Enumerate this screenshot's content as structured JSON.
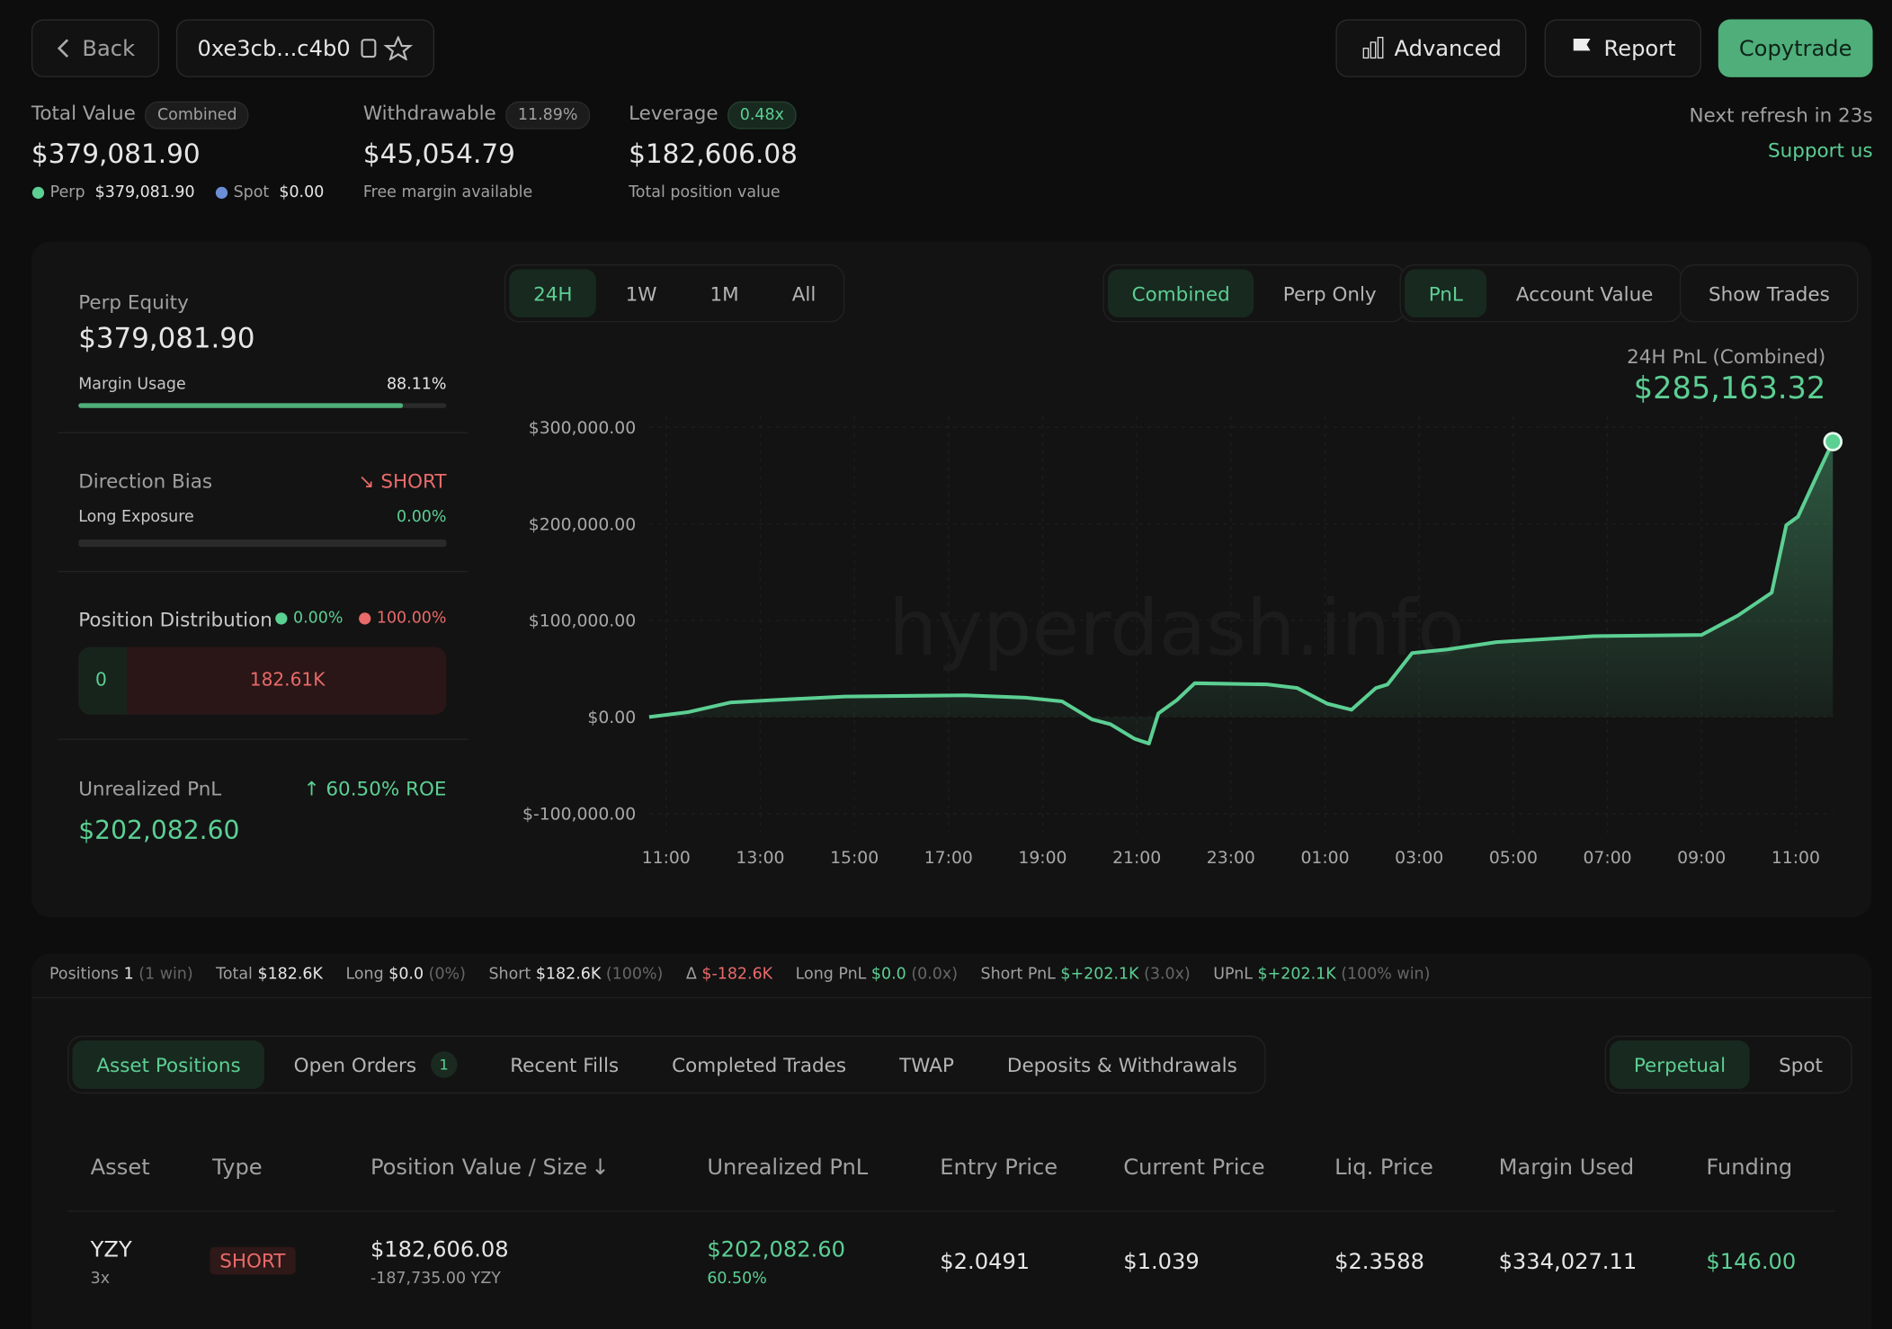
{
  "header": {
    "back": "Back",
    "address": "0xe3cb...c4b0",
    "buttons": [
      "Advanced",
      "Report",
      "Copytrade"
    ]
  },
  "stats": [
    {
      "label": "Total Value",
      "badge": "Combined",
      "value": "$379,081.90",
      "breakdown": [
        {
          "name": "Perp",
          "value": "$379,081.90"
        },
        {
          "name": "Spot",
          "value": "$0.00"
        }
      ]
    },
    {
      "label": "Withdrawable",
      "badge": "11.89%",
      "value": "$45,054.79",
      "sub": "Free margin available"
    },
    {
      "label": "Leverage",
      "badge": "0.48x",
      "value": "$182,606.08",
      "sub": "Total position value"
    }
  ],
  "refresh": "Next refresh in 23s",
  "support": "Support us",
  "panel": {
    "perp_equity": {
      "label": "Perp Equity",
      "value": "$379,081.90",
      "usage_label": "Margin Usage",
      "usage": "88.11%"
    },
    "direction": {
      "label": "Direction Bias",
      "bias": "SHORT",
      "exposure_label": "Long Exposure",
      "exposure": "0.00%"
    },
    "distribution": {
      "label": "Position Distribution",
      "long": "0.00%",
      "short": "100.00%",
      "long_value": "0",
      "short_value": "182.61K"
    },
    "upnl": {
      "label": "Unrealized PnL",
      "roe": "60.50% ROE",
      "value": "$202,082.60"
    }
  },
  "chart_controls": {
    "ranges": [
      "24H",
      "1W",
      "1M",
      "All"
    ],
    "modes": [
      "Combined",
      "Perp Only"
    ],
    "metrics": [
      "PnL",
      "Account Value"
    ],
    "show_trades": "Show Trades"
  },
  "chart_data": {
    "type": "line",
    "title": "24H PnL (Combined)",
    "annotation": "$285,163.32",
    "watermark": "hyperdash.info",
    "color": "#5ccf93",
    "x": [
      -0.36,
      0.46,
      1.36,
      2.26,
      3.8,
      6.36,
      7.64,
      8.41,
      9.05,
      9.44,
      9.95,
      10.26,
      10.46,
      10.85,
      11.23,
      12.77,
      13.41,
      14.05,
      14.56,
      15.08,
      15.33,
      15.85,
      16.6,
      17.64,
      19.69,
      22.0,
      22.77,
      23.49,
      23.8,
      24.05,
      24.44,
      24.79
    ],
    "values": [
      0,
      5000,
      15000,
      17500,
      21250,
      22500,
      20000,
      16250,
      -2500,
      -7500,
      -22500,
      -27500,
      3750,
      17500,
      35000,
      33750,
      30000,
      13750,
      7500,
      30000,
      33750,
      66250,
      70000,
      77500,
      83750,
      85000,
      105000,
      128750,
      198750,
      207500,
      248750,
      285163.32
    ],
    "xlim": [
      -0.36,
      24.79
    ],
    "xticks": [
      {
        "value": 0,
        "label": "11:00"
      },
      {
        "value": 2,
        "label": "13:00"
      },
      {
        "value": 4,
        "label": "15:00"
      },
      {
        "value": 6,
        "label": "17:00"
      },
      {
        "value": 8,
        "label": "19:00"
      },
      {
        "value": 10,
        "label": "21:00"
      },
      {
        "value": 12,
        "label": "23:00"
      },
      {
        "value": 14,
        "label": "01:00"
      },
      {
        "value": 16,
        "label": "03:00"
      },
      {
        "value": 18,
        "label": "05:00"
      },
      {
        "value": 20,
        "label": "07:00"
      },
      {
        "value": 22,
        "label": "09:00"
      },
      {
        "value": 24,
        "label": "11:00"
      }
    ],
    "ylim": [
      -100000,
      300000
    ],
    "yticks": [
      {
        "value": 300000,
        "label": "$300,000.00"
      },
      {
        "value": 200000,
        "label": "$200,000.00"
      },
      {
        "value": 100000,
        "label": "$100,000.00"
      },
      {
        "value": 0,
        "label": "$0.00"
      },
      {
        "value": -100000,
        "label": "$-100,000.00"
      }
    ],
    "grid": true
  },
  "summary": [
    {
      "label": "Positions",
      "value": "1",
      "extra": "(1 win)"
    },
    {
      "label": "Total",
      "value": "$182.6K"
    },
    {
      "label": "Long",
      "value": "$0.0",
      "extra": "(0%)"
    },
    {
      "label": "Short",
      "value": "$182.6K",
      "extra": "(100%)"
    },
    {
      "label": "Δ",
      "value": "$-182.6K",
      "color": "#e86a6a"
    },
    {
      "label": "Long PnL",
      "value": "$0.0",
      "extra": "(0.0x)",
      "color": "#5ccf93"
    },
    {
      "label": "Short PnL",
      "value": "$+202.1K",
      "extra": "(3.0x)",
      "color": "#5ccf93"
    },
    {
      "label": "UPnL",
      "value": "$+202.1K",
      "extra": "(100% win)",
      "color": "#5ccf93"
    }
  ],
  "tabs": [
    "Asset Positions",
    "Open Orders",
    "Recent Fills",
    "Completed Trades",
    "TWAP",
    "Deposits & Withdrawals"
  ],
  "tab_badge": "1",
  "market_tabs": [
    "Perpetual",
    "Spot"
  ],
  "table": {
    "columns": [
      "Asset",
      "Type",
      "Position Value / Size",
      "Unrealized PnL",
      "Entry Price",
      "Current Price",
      "Liq. Price",
      "Margin Used",
      "Funding"
    ],
    "rows": [
      {
        "asset": "YZY",
        "leverage": "3x",
        "type": "SHORT",
        "value": "$182,606.08",
        "size": "-187,735.00 YZY",
        "upnl": "$202,082.60",
        "upnl_pct": "60.50%",
        "entry": "$2.0491",
        "current": "$1.039",
        "liq": "$2.3588",
        "margin": "$334,027.11",
        "funding": "$146.00"
      }
    ]
  }
}
